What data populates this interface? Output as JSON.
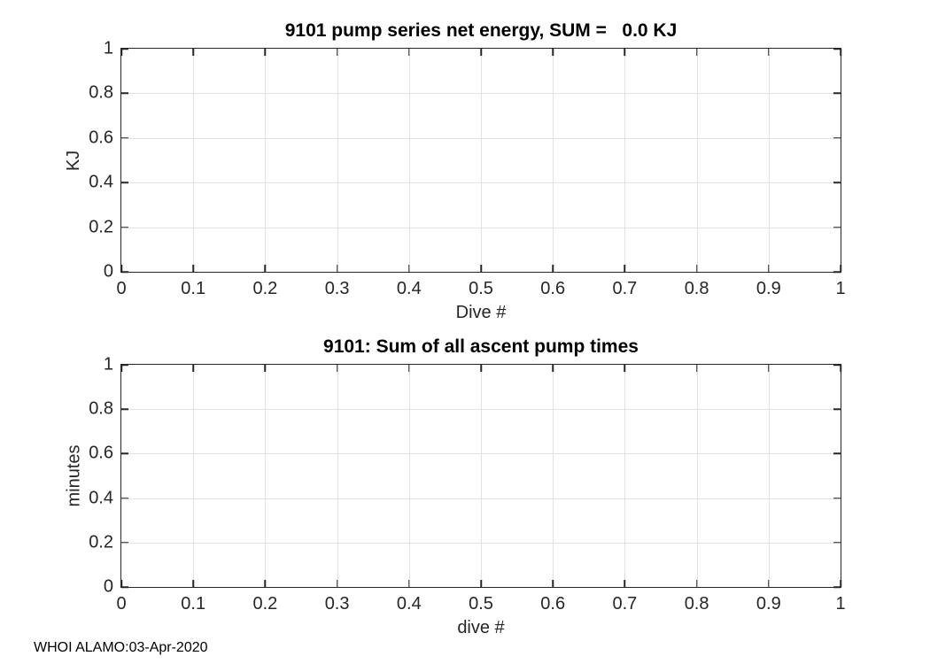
{
  "colors": {
    "axis": "#262626",
    "grid": "#e2e2e2",
    "titlecol": "#000000",
    "labelcol": "#262626",
    "bg": "#ffffff"
  },
  "footer": {
    "text": "WHOI ALAMO:03-Apr-2020"
  },
  "chart_data": [
    {
      "type": "line",
      "title": "9101 pump series net energy, SUM =   0.0 KJ",
      "xlabel": "Dive #",
      "ylabel": "KJ",
      "xlim": [
        0,
        1
      ],
      "ylim": [
        0,
        1
      ],
      "xticks": [
        0,
        0.1,
        0.2,
        0.3,
        0.4,
        0.5,
        0.6,
        0.7,
        0.8,
        0.9,
        1
      ],
      "xtick_labels": [
        "0",
        "0.1",
        "0.2",
        "0.3",
        "0.4",
        "0.5",
        "0.6",
        "0.7",
        "0.8",
        "0.9",
        "1"
      ],
      "yticks": [
        0,
        0.2,
        0.4,
        0.6,
        0.8,
        1
      ],
      "ytick_labels": [
        "0",
        "0.2",
        "0.4",
        "0.6",
        "0.8",
        "1"
      ],
      "grid": true,
      "box": true,
      "legend": null,
      "series": []
    },
    {
      "type": "line",
      "title": "9101: Sum of all ascent pump times",
      "xlabel": "dive #",
      "ylabel": "minutes",
      "xlim": [
        0,
        1
      ],
      "ylim": [
        0,
        1
      ],
      "xticks": [
        0,
        0.1,
        0.2,
        0.3,
        0.4,
        0.5,
        0.6,
        0.7,
        0.8,
        0.9,
        1
      ],
      "xtick_labels": [
        "0",
        "0.1",
        "0.2",
        "0.3",
        "0.4",
        "0.5",
        "0.6",
        "0.7",
        "0.8",
        "0.9",
        "1"
      ],
      "yticks": [
        0,
        0.2,
        0.4,
        0.6,
        0.8,
        1
      ],
      "ytick_labels": [
        "0",
        "0.2",
        "0.4",
        "0.6",
        "0.8",
        "1"
      ],
      "grid": true,
      "box": true,
      "legend": null,
      "series": []
    }
  ]
}
